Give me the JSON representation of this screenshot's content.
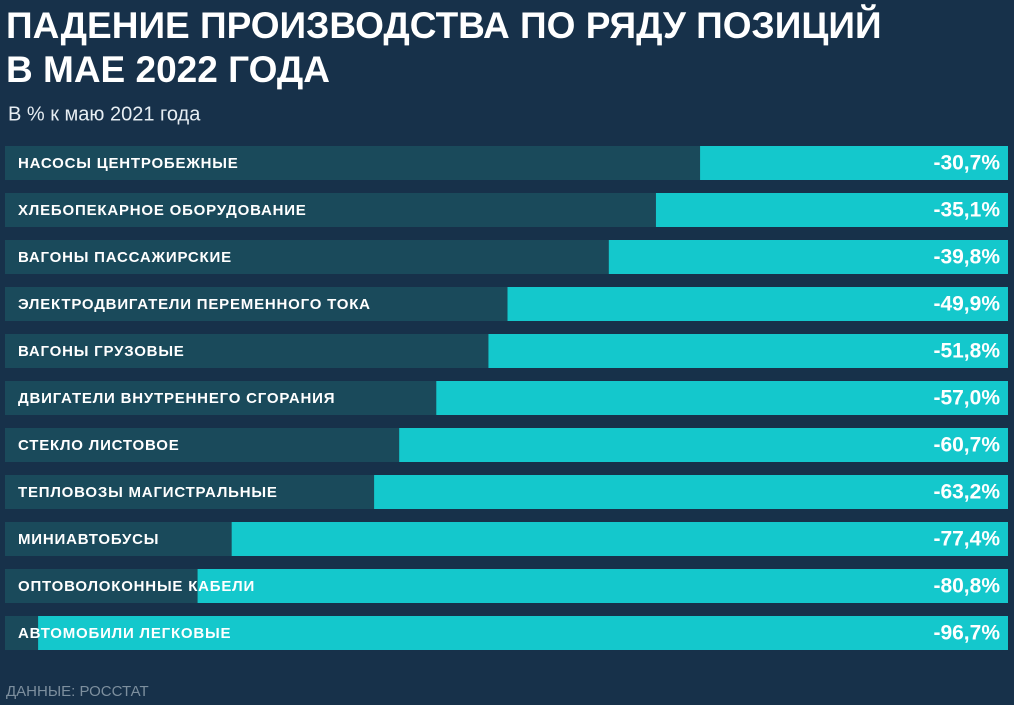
{
  "chart_data": {
    "type": "bar",
    "orientation": "horizontal",
    "title": [
      "ПАДЕНИЕ ПРОИЗВОДСТВА ПО РЯДУ ПОЗИЦИЙ",
      "В МАЕ 2022 ГОДА"
    ],
    "subtitle": "В % к маю 2021 года",
    "source": "ДАННЫЕ: РОССТАТ",
    "categories": [
      "НАСОСЫ ЦЕНТРОБЕЖНЫЕ",
      "ХЛЕБОПЕКАРНОЕ ОБОРУДОВАНИЕ",
      "ВАГОНЫ ПАССАЖИРСКИЕ",
      "ЭЛЕКТРОДВИГАТЕЛИ ПЕРЕМЕННОГО ТОКА",
      "ВАГОНЫ ГРУЗОВЫЕ",
      "ДВИГАТЕЛИ ВНУТРЕННЕГО СГОРАНИЯ",
      "СТЕКЛО ЛИСТОВОЕ",
      "ТЕПЛОВОЗЫ МАГИСТРАЛЬНЫЕ",
      "МИНИАВТОБУСЫ",
      "ОПТОВОЛОКОННЫЕ КАБЕЛИ",
      "АВТОМОБИЛИ ЛЕГКОВЫЕ"
    ],
    "values": [
      -30.7,
      -35.1,
      -39.8,
      -49.9,
      -51.8,
      -57.0,
      -60.7,
      -63.2,
      -77.4,
      -80.8,
      -96.7
    ],
    "value_labels": [
      "-30,7%",
      "-35,1%",
      "-39,8%",
      "-49,9%",
      "-51,8%",
      "-57,0%",
      "-60,7%",
      "-63,2%",
      "-77,4%",
      "-80,8%",
      "-96,7%"
    ],
    "color": "#14c8cc",
    "track_color": "#1a4a5b",
    "xlim": [
      -100,
      0
    ]
  }
}
